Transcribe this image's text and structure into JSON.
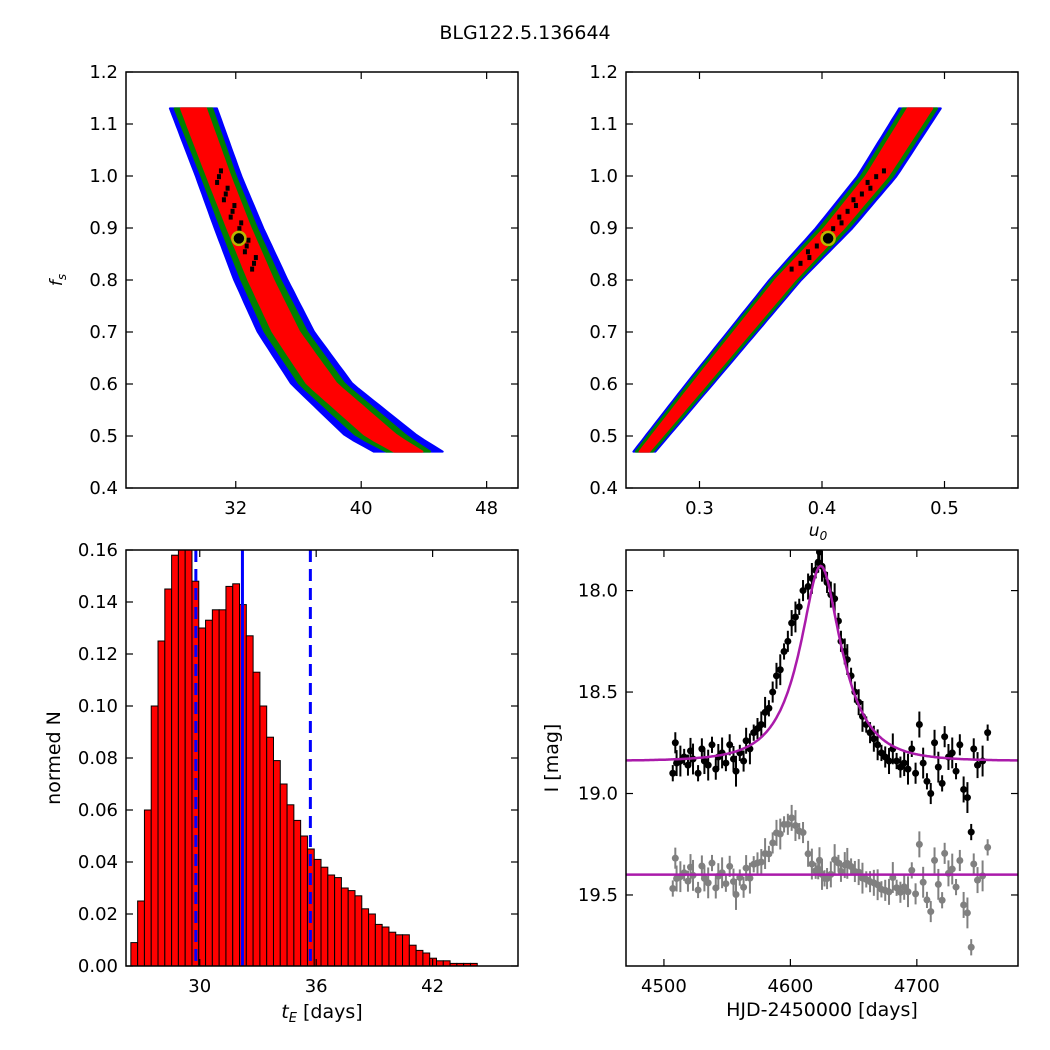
{
  "figure_title": "BLG122.5.136644",
  "colors": {
    "sigma1": "#ff0000",
    "sigma2": "#008000",
    "sigma3": "#0000ff",
    "chain_points": "#000000",
    "best_fit_marker_edge": "#b8b800",
    "histogram_bar": "#ff0000",
    "vlines": "#0000ff",
    "model_curve": "#aa1aaa",
    "data_points": "#000000",
    "residual_points": "#808080"
  },
  "chart_data": [
    {
      "type": "heatmap",
      "xlabel": "",
      "ylabel": "f_s",
      "xlim": [
        25,
        50
      ],
      "ylim": [
        0.4,
        1.2
      ],
      "xticks": [
        "32",
        "40",
        "48"
      ],
      "yticks": [
        "0.4",
        "0.5",
        "0.6",
        "0.7",
        "0.8",
        "0.9",
        "1.0",
        "1.1",
        "1.2"
      ],
      "confidence_band": {
        "fs": [
          1.13,
          1.0,
          0.9,
          0.8,
          0.7,
          0.6,
          0.5,
          0.47
        ],
        "tE_center": [
          29.3,
          30.9,
          32.2,
          33.6,
          35.2,
          37.5,
          41.3,
          43.0
        ],
        "half_width_sigma1": [
          0.8,
          0.75,
          0.75,
          0.8,
          0.85,
          0.95,
          1.0,
          0.9
        ],
        "half_width_sigma2": [
          1.2,
          1.1,
          1.15,
          1.25,
          1.35,
          1.45,
          1.6,
          1.4
        ],
        "half_width_sigma3": [
          1.5,
          1.45,
          1.55,
          1.7,
          1.8,
          1.95,
          2.3,
          2.2
        ]
      },
      "best_fit": {
        "tE": 32.2,
        "fs": 0.88
      }
    },
    {
      "type": "heatmap",
      "xlabel": "u_0",
      "ylabel": "",
      "xlim": [
        0.24,
        0.56
      ],
      "ylim": [
        0.4,
        1.2
      ],
      "xticks": [
        "0.3",
        "0.4",
        "0.5"
      ],
      "yticks": [
        "0.4",
        "0.5",
        "0.6",
        "0.7",
        "0.8",
        "0.9",
        "1.0",
        "1.1",
        "1.2"
      ],
      "confidence_band": {
        "fs": [
          0.47,
          0.6,
          0.7,
          0.8,
          0.9,
          1.0,
          1.13
        ],
        "u0_center": [
          0.255,
          0.3,
          0.335,
          0.37,
          0.41,
          0.445,
          0.48
        ],
        "half_width_sigma1": [
          0.004,
          0.006,
          0.007,
          0.008,
          0.008,
          0.009,
          0.01
        ],
        "half_width_sigma2": [
          0.007,
          0.009,
          0.01,
          0.011,
          0.012,
          0.013,
          0.014
        ],
        "half_width_sigma3": [
          0.009,
          0.011,
          0.012,
          0.013,
          0.015,
          0.016,
          0.017
        ]
      },
      "best_fit": {
        "u0": 0.405,
        "fs": 0.88
      }
    },
    {
      "type": "bar",
      "xlabel": "t_E  [days]",
      "ylabel": "normed N",
      "xlim": [
        26.2,
        46.4
      ],
      "ylim": [
        0,
        0.16
      ],
      "xticks": [
        "30",
        "36",
        "42"
      ],
      "yticks": [
        "0.00",
        "0.02",
        "0.04",
        "0.06",
        "0.08",
        "0.10",
        "0.12",
        "0.14",
        "0.16"
      ],
      "bin_start": 26.45,
      "bin_width": 0.35,
      "values": [
        0.009,
        0.025,
        0.06,
        0.1,
        0.125,
        0.145,
        0.158,
        0.165,
        0.16,
        0.148,
        0.13,
        0.133,
        0.137,
        0.137,
        0.146,
        0.147,
        0.139,
        0.127,
        0.113,
        0.1,
        0.088,
        0.079,
        0.07,
        0.062,
        0.056,
        0.05,
        0.045,
        0.041,
        0.038,
        0.035,
        0.034,
        0.03,
        0.029,
        0.027,
        0.022,
        0.02,
        0.016,
        0.015,
        0.013,
        0.012,
        0.012,
        0.008,
        0.006,
        0.005,
        0.003,
        0.002,
        0.002,
        0.001,
        0.001,
        0.001,
        0.001,
        0.0,
        0.0,
        0.0,
        0.0
      ],
      "median_line": 32.2,
      "dashed_lines": [
        29.8,
        35.7
      ]
    },
    {
      "type": "scatter",
      "xlabel": "HJD-2450000 [days]",
      "ylabel": "I [mag]",
      "xlim": [
        4470,
        4780
      ],
      "ylim": [
        19.85,
        17.8
      ],
      "y_inverted": true,
      "xticks": [
        "4500",
        "4600",
        "4700"
      ],
      "yticks": [
        "18.0",
        "18.5",
        "19.0",
        "19.5"
      ],
      "model": {
        "t0": 4624,
        "u0": 0.405,
        "tE": 32.2,
        "fs": 0.88,
        "I_baseline": 18.84
      },
      "residual_offset_line": 19.4,
      "observations": [
        [
          4507,
          18.9
        ],
        [
          4509,
          18.75
        ],
        [
          4510,
          18.85
        ],
        [
          4513,
          18.84
        ],
        [
          4516,
          18.82
        ],
        [
          4519,
          18.86
        ],
        [
          4521,
          18.79
        ],
        [
          4523,
          18.83
        ],
        [
          4527,
          18.9
        ],
        [
          4530,
          18.78
        ],
        [
          4532,
          18.84
        ],
        [
          4535,
          18.86
        ],
        [
          4538,
          18.76
        ],
        [
          4541,
          18.88
        ],
        [
          4543,
          18.82
        ],
        [
          4546,
          18.8
        ],
        [
          4549,
          18.85
        ],
        [
          4552,
          18.76
        ],
        [
          4555,
          18.83
        ],
        [
          4557,
          18.89
        ],
        [
          4560,
          18.8
        ],
        [
          4563,
          18.84
        ],
        [
          4565,
          18.74
        ],
        [
          4568,
          18.78
        ],
        [
          4571,
          18.7
        ],
        [
          4574,
          18.68
        ],
        [
          4577,
          18.66
        ],
        [
          4580,
          18.6
        ],
        [
          4583,
          18.58
        ],
        [
          4586,
          18.5
        ],
        [
          4589,
          18.42
        ],
        [
          4592,
          18.39
        ],
        [
          4595,
          18.3
        ],
        [
          4598,
          18.25
        ],
        [
          4601,
          18.16
        ],
        [
          4604,
          18.13
        ],
        [
          4607,
          18.08
        ],
        [
          4610,
          18.0
        ],
        [
          4614,
          17.98
        ],
        [
          4617,
          17.94
        ],
        [
          4620,
          17.9
        ],
        [
          4622,
          17.86
        ],
        [
          4623,
          17.81
        ],
        [
          4625,
          17.88
        ],
        [
          4627,
          17.92
        ],
        [
          4629,
          17.96
        ],
        [
          4632,
          18.02
        ],
        [
          4635,
          18.04
        ],
        [
          4638,
          18.15
        ],
        [
          4640,
          18.25
        ],
        [
          4643,
          18.3
        ],
        [
          4645,
          18.34
        ],
        [
          4648,
          18.42
        ],
        [
          4651,
          18.5
        ],
        [
          4654,
          18.55
        ],
        [
          4657,
          18.62
        ],
        [
          4660,
          18.66
        ],
        [
          4663,
          18.7
        ],
        [
          4666,
          18.73
        ],
        [
          4669,
          18.76
        ],
        [
          4672,
          18.8
        ],
        [
          4675,
          18.82
        ],
        [
          4678,
          18.84
        ],
        [
          4681,
          18.78
        ],
        [
          4684,
          18.84
        ],
        [
          4687,
          18.87
        ],
        [
          4690,
          18.85
        ],
        [
          4693,
          18.88
        ],
        [
          4696,
          18.78
        ],
        [
          4699,
          18.9
        ],
        [
          4702,
          18.66
        ],
        [
          4705,
          18.85
        ],
        [
          4708,
          18.94
        ],
        [
          4711,
          19.0
        ],
        [
          4714,
          18.75
        ],
        [
          4717,
          18.87
        ],
        [
          4720,
          18.95
        ],
        [
          4722,
          18.72
        ],
        [
          4725,
          18.82
        ],
        [
          4728,
          18.8
        ],
        [
          4731,
          18.89
        ],
        [
          4734,
          18.76
        ],
        [
          4737,
          18.98
        ],
        [
          4740,
          19.02
        ],
        [
          4743,
          19.19
        ],
        [
          4745,
          18.78
        ],
        [
          4748,
          18.86
        ],
        [
          4752,
          18.84
        ],
        [
          4756,
          18.7
        ]
      ]
    }
  ]
}
